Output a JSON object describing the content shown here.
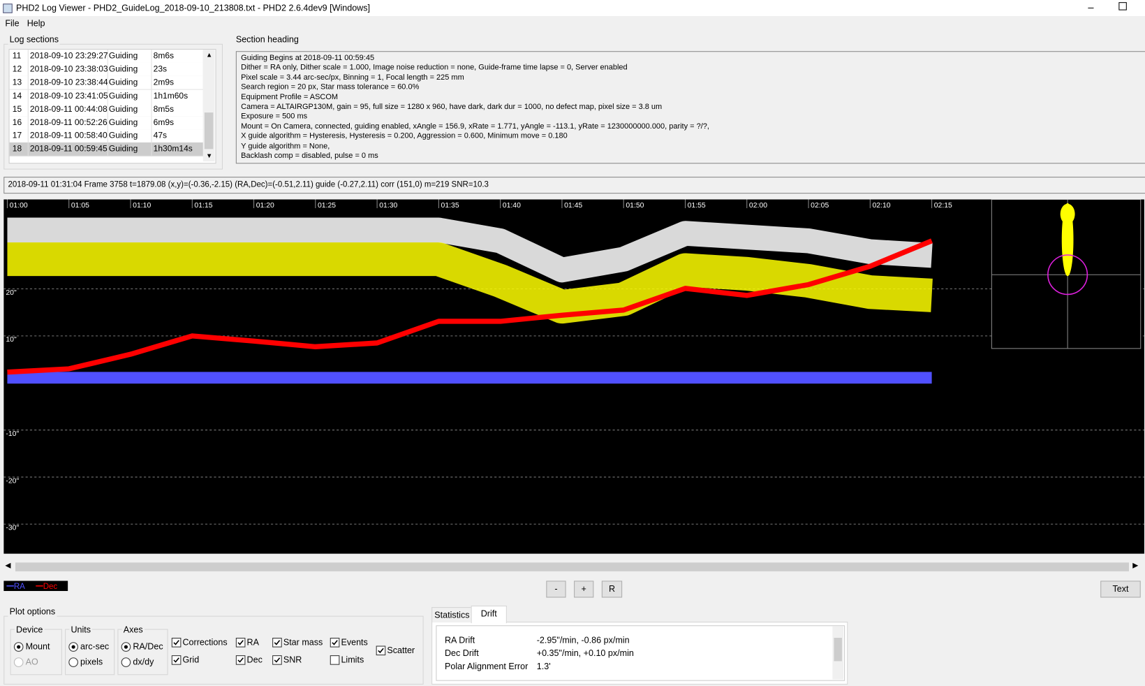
{
  "window": {
    "title": "PHD2 Log Viewer - PHD2_GuideLog_2018-09-10_213808.txt - PHD2 2.6.4dev9 [Windows]"
  },
  "menu": [
    "File",
    "Help"
  ],
  "log_sections": {
    "label": "Log sections",
    "selected": 7,
    "rows": [
      [
        "11",
        "2018-09-10 23:29:27",
        "Guiding",
        "8m6s"
      ],
      [
        "12",
        "2018-09-10 23:38:03",
        "Guiding",
        "23s"
      ],
      [
        "13",
        "2018-09-10 23:38:44",
        "Guiding",
        "2m9s"
      ],
      [
        "14",
        "2018-09-10 23:41:05",
        "Guiding",
        "1h1m60s"
      ],
      [
        "15",
        "2018-09-11 00:44:08",
        "Guiding",
        "8m5s"
      ],
      [
        "16",
        "2018-09-11 00:52:26",
        "Guiding",
        "6m9s"
      ],
      [
        "17",
        "2018-09-11 00:58:40",
        "Guiding",
        "47s"
      ],
      [
        "18",
        "2018-09-11 00:59:45",
        "Guiding",
        "1h30m14s"
      ]
    ]
  },
  "section_heading": {
    "label": "Section heading",
    "lines": [
      "Guiding Begins at 2018-09-11 00:59:45",
      "Dither = RA only, Dither scale = 1.000, Image noise reduction = none, Guide-frame time lapse = 0, Server enabled",
      "Pixel scale = 3.44 arc-sec/px, Binning = 1, Focal length = 225 mm",
      "Search region = 20 px, Star mass tolerance = 60.0%",
      "Equipment Profile = ASCOM",
      "Camera = ALTAIRGP130M, gain = 95, full size = 1280 x 960, have dark, dark dur = 1000, no defect map, pixel size = 3.8 um",
      "Exposure = 500 ms",
      "Mount = On Camera,  connected, guiding enabled, xAngle = 156.9, xRate = 1.771, yAngle = -113.1, yRate = 1230000000.000, parity = ?/?,",
      "X guide algorithm = Hysteresis, Hysteresis = 0.200, Aggression = 0.600, Minimum move = 0.180",
      "Y guide algorithm = None,",
      "Backlash comp = disabled, pulse = 0 ms"
    ]
  },
  "status": "2018-09-11 01:31:04 Frame 3758 t=1879.08 (x,y)=(-0.36,-2.15) (RA,Dec)=(-0.51,2.11) guide (-0.27,2.11) corr (151,0) m=219 SNR=10.3",
  "chart_data": {
    "type": "line",
    "categories": [
      "01:00",
      "01:05",
      "01:10",
      "01:15",
      "01:20",
      "01:25",
      "01:30",
      "01:35",
      "01:40",
      "01:45",
      "01:50",
      "01:55",
      "02:00",
      "02:05",
      "02:10",
      "02:15"
    ],
    "ylim": [
      -36.3,
      39
    ],
    "yticks": [
      {
        "value": 20,
        "label": "20\""
      },
      {
        "value": 10,
        "label": "10\""
      },
      {
        "value": -10,
        "label": "-10\""
      },
      {
        "value": -20,
        "label": "-20\""
      },
      {
        "value": -30,
        "label": "-30\""
      }
    ],
    "grid": true,
    "series": [
      {
        "color": "#ffffff",
        "values": [
          32.5,
          32.5,
          32.5,
          32.5,
          32.5,
          32.5,
          32.5,
          32.5,
          30.2,
          24,
          26.3,
          31.8,
          31,
          30.2,
          27.9,
          27.1
        ]
      },
      {
        "color": "#ffff00",
        "values": [
          26.3,
          26.3,
          26.3,
          26.3,
          26.3,
          26.3,
          26.3,
          26.3,
          21.7,
          16.2,
          17.8,
          24,
          23.2,
          21.7,
          19.3,
          18.6
        ]
      },
      {
        "name": "RA",
        "color": "#5050ff",
        "values": [
          1.1,
          1.1,
          1.1,
          1.1,
          1.1,
          1.1,
          1.1,
          1.1,
          1.1,
          1.1,
          1.1,
          1.1,
          1.1,
          1.1,
          1.1,
          1.1
        ]
      },
      {
        "name": "Dec",
        "color": "#ff0000",
        "values": [
          2.3,
          3,
          6.1,
          10,
          8.9,
          7.7,
          8.5,
          13.1,
          13.1,
          14.4,
          15.5,
          20.1,
          18.6,
          20.9,
          24.8,
          30.2
        ]
      }
    ]
  },
  "buttons": [
    "-",
    "+",
    "R",
    "Text"
  ],
  "plot_options": {
    "label": "Plot options",
    "groups": [
      {
        "label": "Device",
        "options": [
          {
            "label": "Mount",
            "checked": true
          },
          {
            "label": "AO",
            "checked": false,
            "disabled": true
          }
        ]
      },
      {
        "label": "Units",
        "options": [
          {
            "label": "arc-sec",
            "checked": true
          },
          {
            "label": "pixels",
            "checked": false
          }
        ]
      },
      {
        "label": "Axes",
        "options": [
          {
            "label": "RA/Dec",
            "checked": true
          },
          {
            "label": "dx/dy",
            "checked": false
          }
        ]
      }
    ],
    "checkboxes": [
      {
        "label": "Corrections",
        "checked": true
      },
      {
        "label": "Grid",
        "checked": true
      },
      {
        "label": "RA",
        "checked": true
      },
      {
        "label": "Dec",
        "checked": true
      },
      {
        "label": "Star mass",
        "checked": true
      },
      {
        "label": "SNR",
        "checked": true
      },
      {
        "label": "Events",
        "checked": true
      },
      {
        "label": "Limits",
        "checked": false
      },
      {
        "label": "Scatter",
        "checked": true
      }
    ]
  },
  "stats": {
    "tabs": [
      "Statistics",
      "Drift"
    ],
    "active": 1,
    "rows": [
      [
        "RA Drift",
        "-2.95\"/min, -0.86 px/min"
      ],
      [
        "Dec Drift",
        "+0.35\"/min, +0.10 px/min"
      ],
      [
        "Polar Alignment Error",
        "1.3'"
      ]
    ]
  }
}
